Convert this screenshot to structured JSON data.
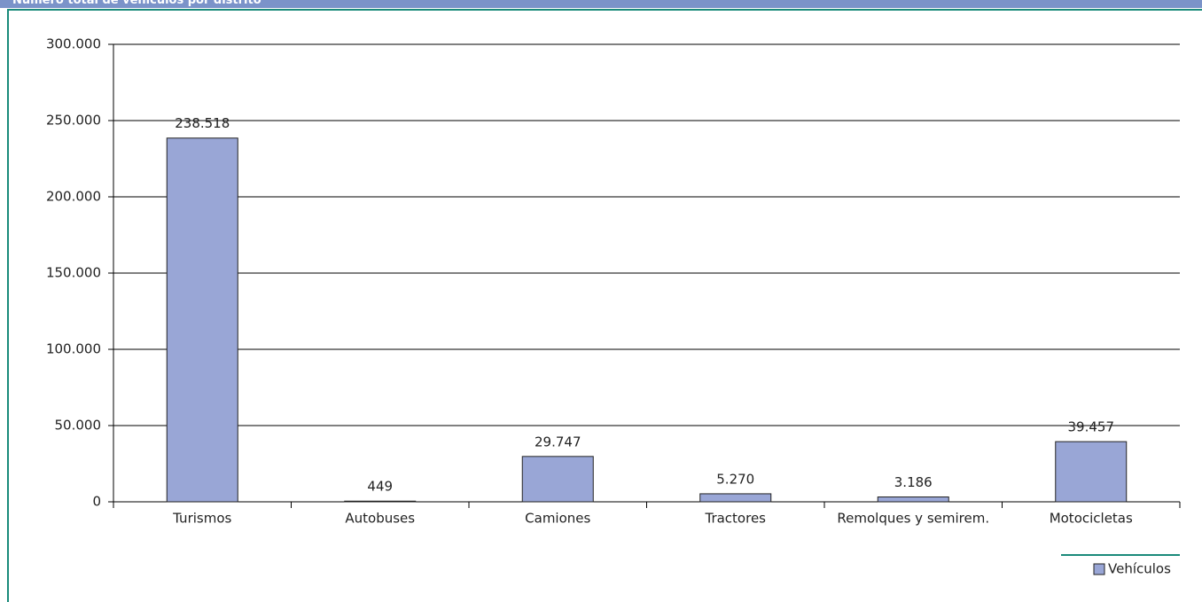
{
  "chart_data": {
    "type": "bar",
    "title": "Número total de vehículos por distrito",
    "categories": [
      "Turismos",
      "Autobuses",
      "Camiones",
      "Tractores",
      "Remolques y semirem.",
      "Motocicletas"
    ],
    "series": [
      {
        "name": "Vehículos",
        "color": "#99a6d6",
        "values": [
          238518,
          449,
          29747,
          5270,
          3186,
          39457
        ],
        "value_labels": [
          "238.518",
          "449",
          "29.747",
          "5.270",
          "3.186",
          "39.457"
        ]
      }
    ],
    "ylim": [
      0,
      300000
    ],
    "yticks": [
      0,
      {
        "value": 50000,
        "label": "50.000"
      },
      {
        "value": 100000,
        "label": "100.000"
      },
      {
        "value": 150000,
        "label": "150.000"
      },
      {
        "value": 200000,
        "label": "200.000"
      },
      {
        "value": 250000,
        "label": "250.000"
      },
      {
        "value": 300000,
        "label": "300.000"
      }
    ],
    "grid": true,
    "legend": "bottom-right"
  }
}
